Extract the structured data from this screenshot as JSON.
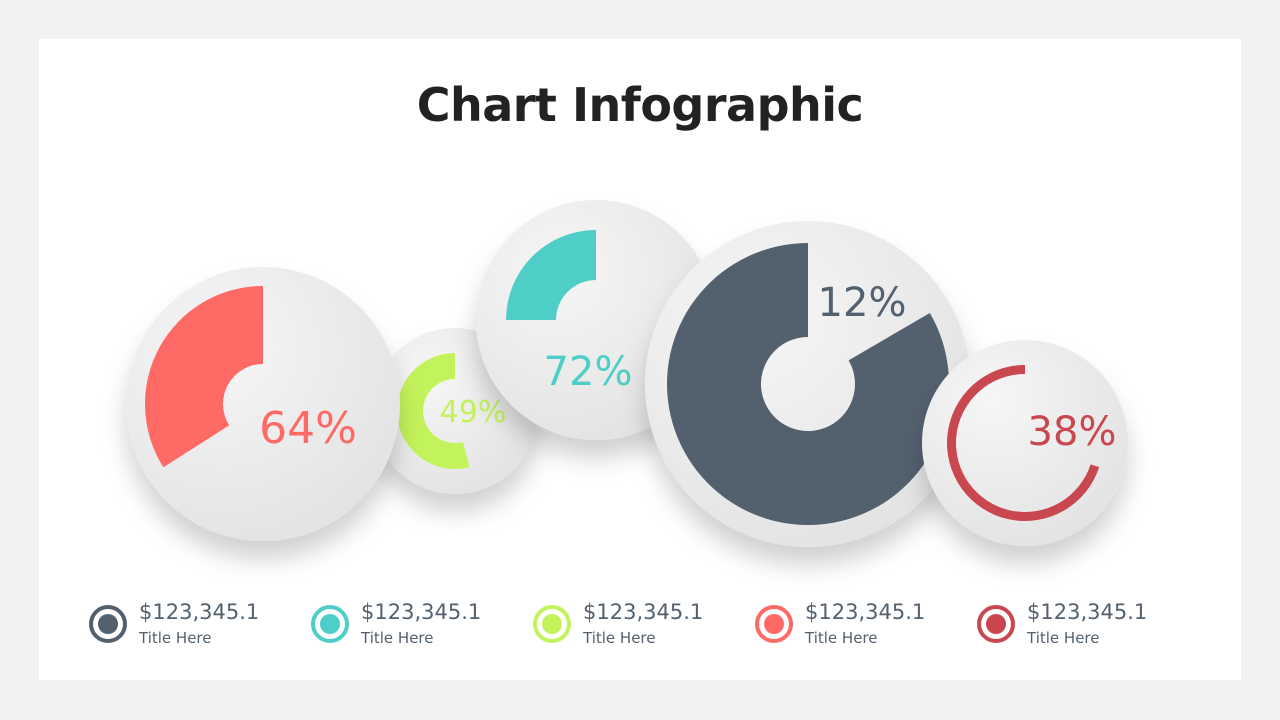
{
  "title": "Chart Infographic",
  "colors": {
    "red": "#ff6a67",
    "lime": "#c3f35b",
    "teal": "#4ecec6",
    "slate": "#53606e",
    "crimson": "#c9474f",
    "circle": "#ebebeb"
  },
  "chart_data": {
    "type": "pie",
    "title": "Chart Infographic",
    "series": [
      {
        "label": "64%",
        "value": 64,
        "color": "#ff6a67"
      },
      {
        "label": "49%",
        "value": 49,
        "color": "#c3f35b"
      },
      {
        "label": "72%",
        "value": 72,
        "color": "#4ecec6"
      },
      {
        "label": "12%",
        "value": 12,
        "color": "#53606e"
      },
      {
        "label": "38%",
        "value": 38,
        "color": "#c9474f"
      }
    ]
  },
  "legend": [
    {
      "value": "$123,345.1",
      "label": "Title Here",
      "color": "#53606e"
    },
    {
      "value": "$123,345.1",
      "label": "Title Here",
      "color": "#4ecec6"
    },
    {
      "value": "$123,345.1",
      "label": "Title Here",
      "color": "#c3f35b"
    },
    {
      "value": "$123,345.1",
      "label": "Title Here",
      "color": "#ff6a67"
    },
    {
      "value": "$123,345.1",
      "label": "Title Here",
      "color": "#c9474f"
    }
  ]
}
